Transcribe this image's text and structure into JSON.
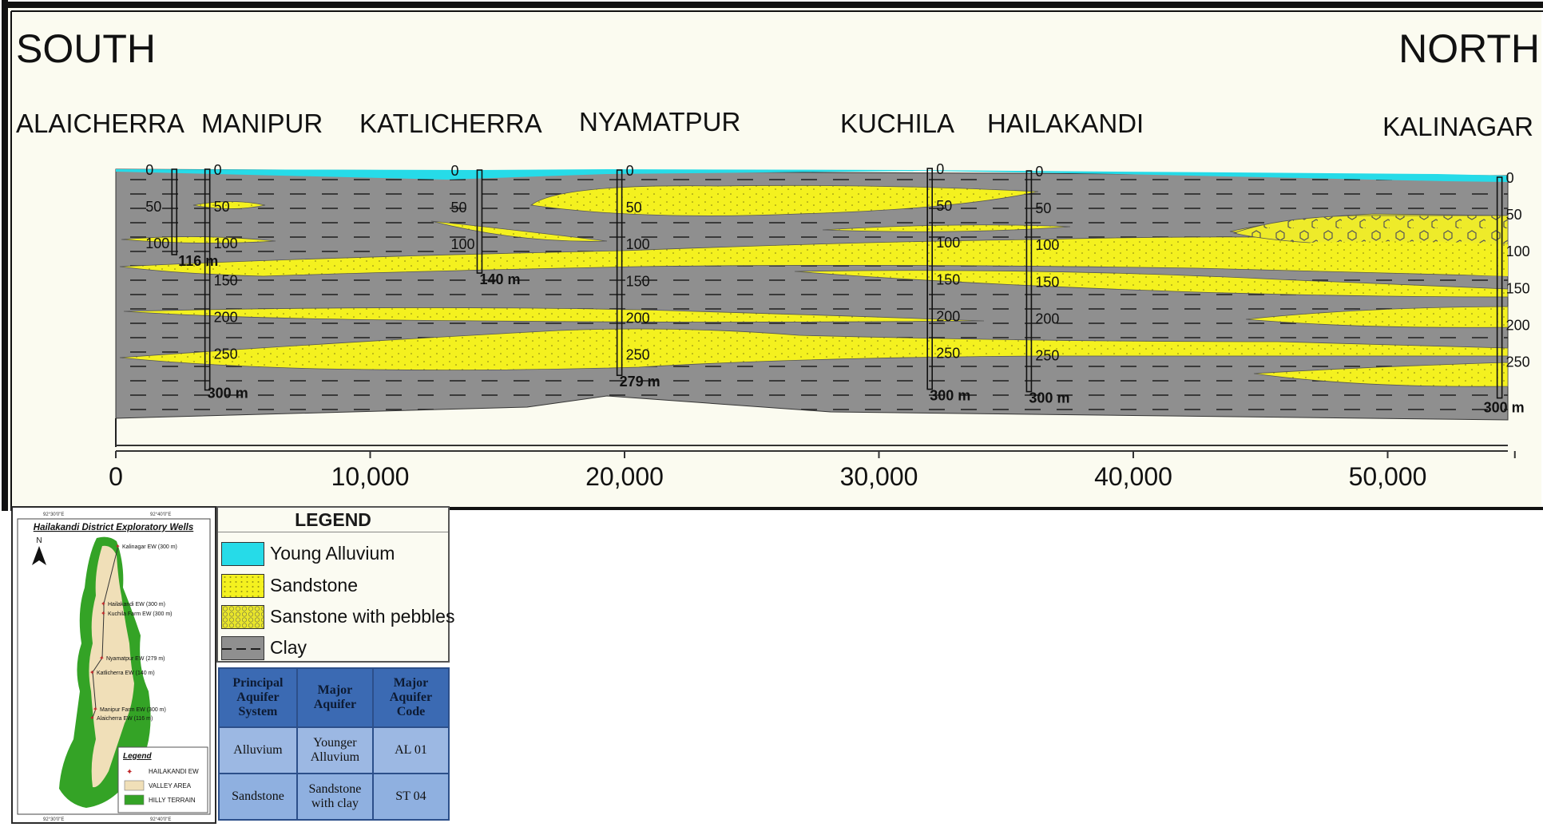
{
  "directions": {
    "south": "SOUTH",
    "north": "NORTH"
  },
  "wells": [
    {
      "name": "ALAICHERRA",
      "distance": 2300,
      "depth_label": "116 m"
    },
    {
      "name": "MANIPUR",
      "distance": 3600,
      "depth_label": "300 m"
    },
    {
      "name": "KATLICHERRA",
      "distance": 14300,
      "depth_label": "140 m"
    },
    {
      "name": "NYAMATPUR",
      "distance": 19800,
      "depth_label": "279 m"
    },
    {
      "name": "KUCHILA",
      "distance": 32000,
      "depth_label": "300 m"
    },
    {
      "name": "HAILAKANDI",
      "distance": 35900,
      "depth_label": "300 m"
    },
    {
      "name": "KALINAGAR",
      "distance": 54400,
      "depth_label": "300 m"
    }
  ],
  "depth_ticks": [
    "0",
    "50",
    "100",
    "150",
    "200",
    "250"
  ],
  "distance_axis": [
    "0",
    "10,000",
    "20,000",
    "30,000",
    "40,000",
    "50,000"
  ],
  "legend": {
    "title": "LEGEND",
    "items": [
      {
        "label": "Young Alluvium",
        "swatch": "young-alluvium",
        "color": "#26dbe8"
      },
      {
        "label": "Sandstone",
        "swatch": "sandstone",
        "color": "#f4f11f"
      },
      {
        "label": "Sanstone with pebbles",
        "swatch": "pebbles",
        "color": "#e9e62a"
      },
      {
        "label": "Clay",
        "swatch": "clay",
        "color": "#8f8f8f"
      }
    ]
  },
  "aquifer_table": {
    "headers": [
      "Principal Aquifer System",
      "Major Aquifer",
      "Major Aquifer Code"
    ],
    "rows": [
      [
        "Alluvium",
        "Younger Alluvium",
        "AL 01"
      ],
      [
        "Sandstone",
        "Sandstone with clay",
        "ST 04"
      ]
    ]
  },
  "inset_map": {
    "title": "Hailakandi District Exploratory Wells",
    "north_arrow": "N",
    "wells": [
      "Kalinagar EW (300 m)",
      "Hailakandi EW (300 m)",
      "Kuchila Farm EW (300 m)",
      "Nyamatpur EW (279 m)",
      "Katlicherra EW (140 m)",
      "Manipur Farm EW (300 m)",
      "Alaicherra EW (116 m)"
    ],
    "legend_title": "Legend",
    "legend_items": [
      "HAILAKANDI EW",
      "VALLEY AREA",
      "HILLY TERRAIN"
    ],
    "top_coords": [
      "92°30'0\"E",
      "92°40'0\"E"
    ],
    "bottom_coords": [
      "92°30'0\"E",
      "92°40'0\"E"
    ]
  },
  "colors": {
    "clay": "#8f8f8f",
    "sandstone": "#f4f11f",
    "alluvium": "#26dbe8",
    "hilly": "#34a326",
    "valley": "#f0dfb8"
  }
}
